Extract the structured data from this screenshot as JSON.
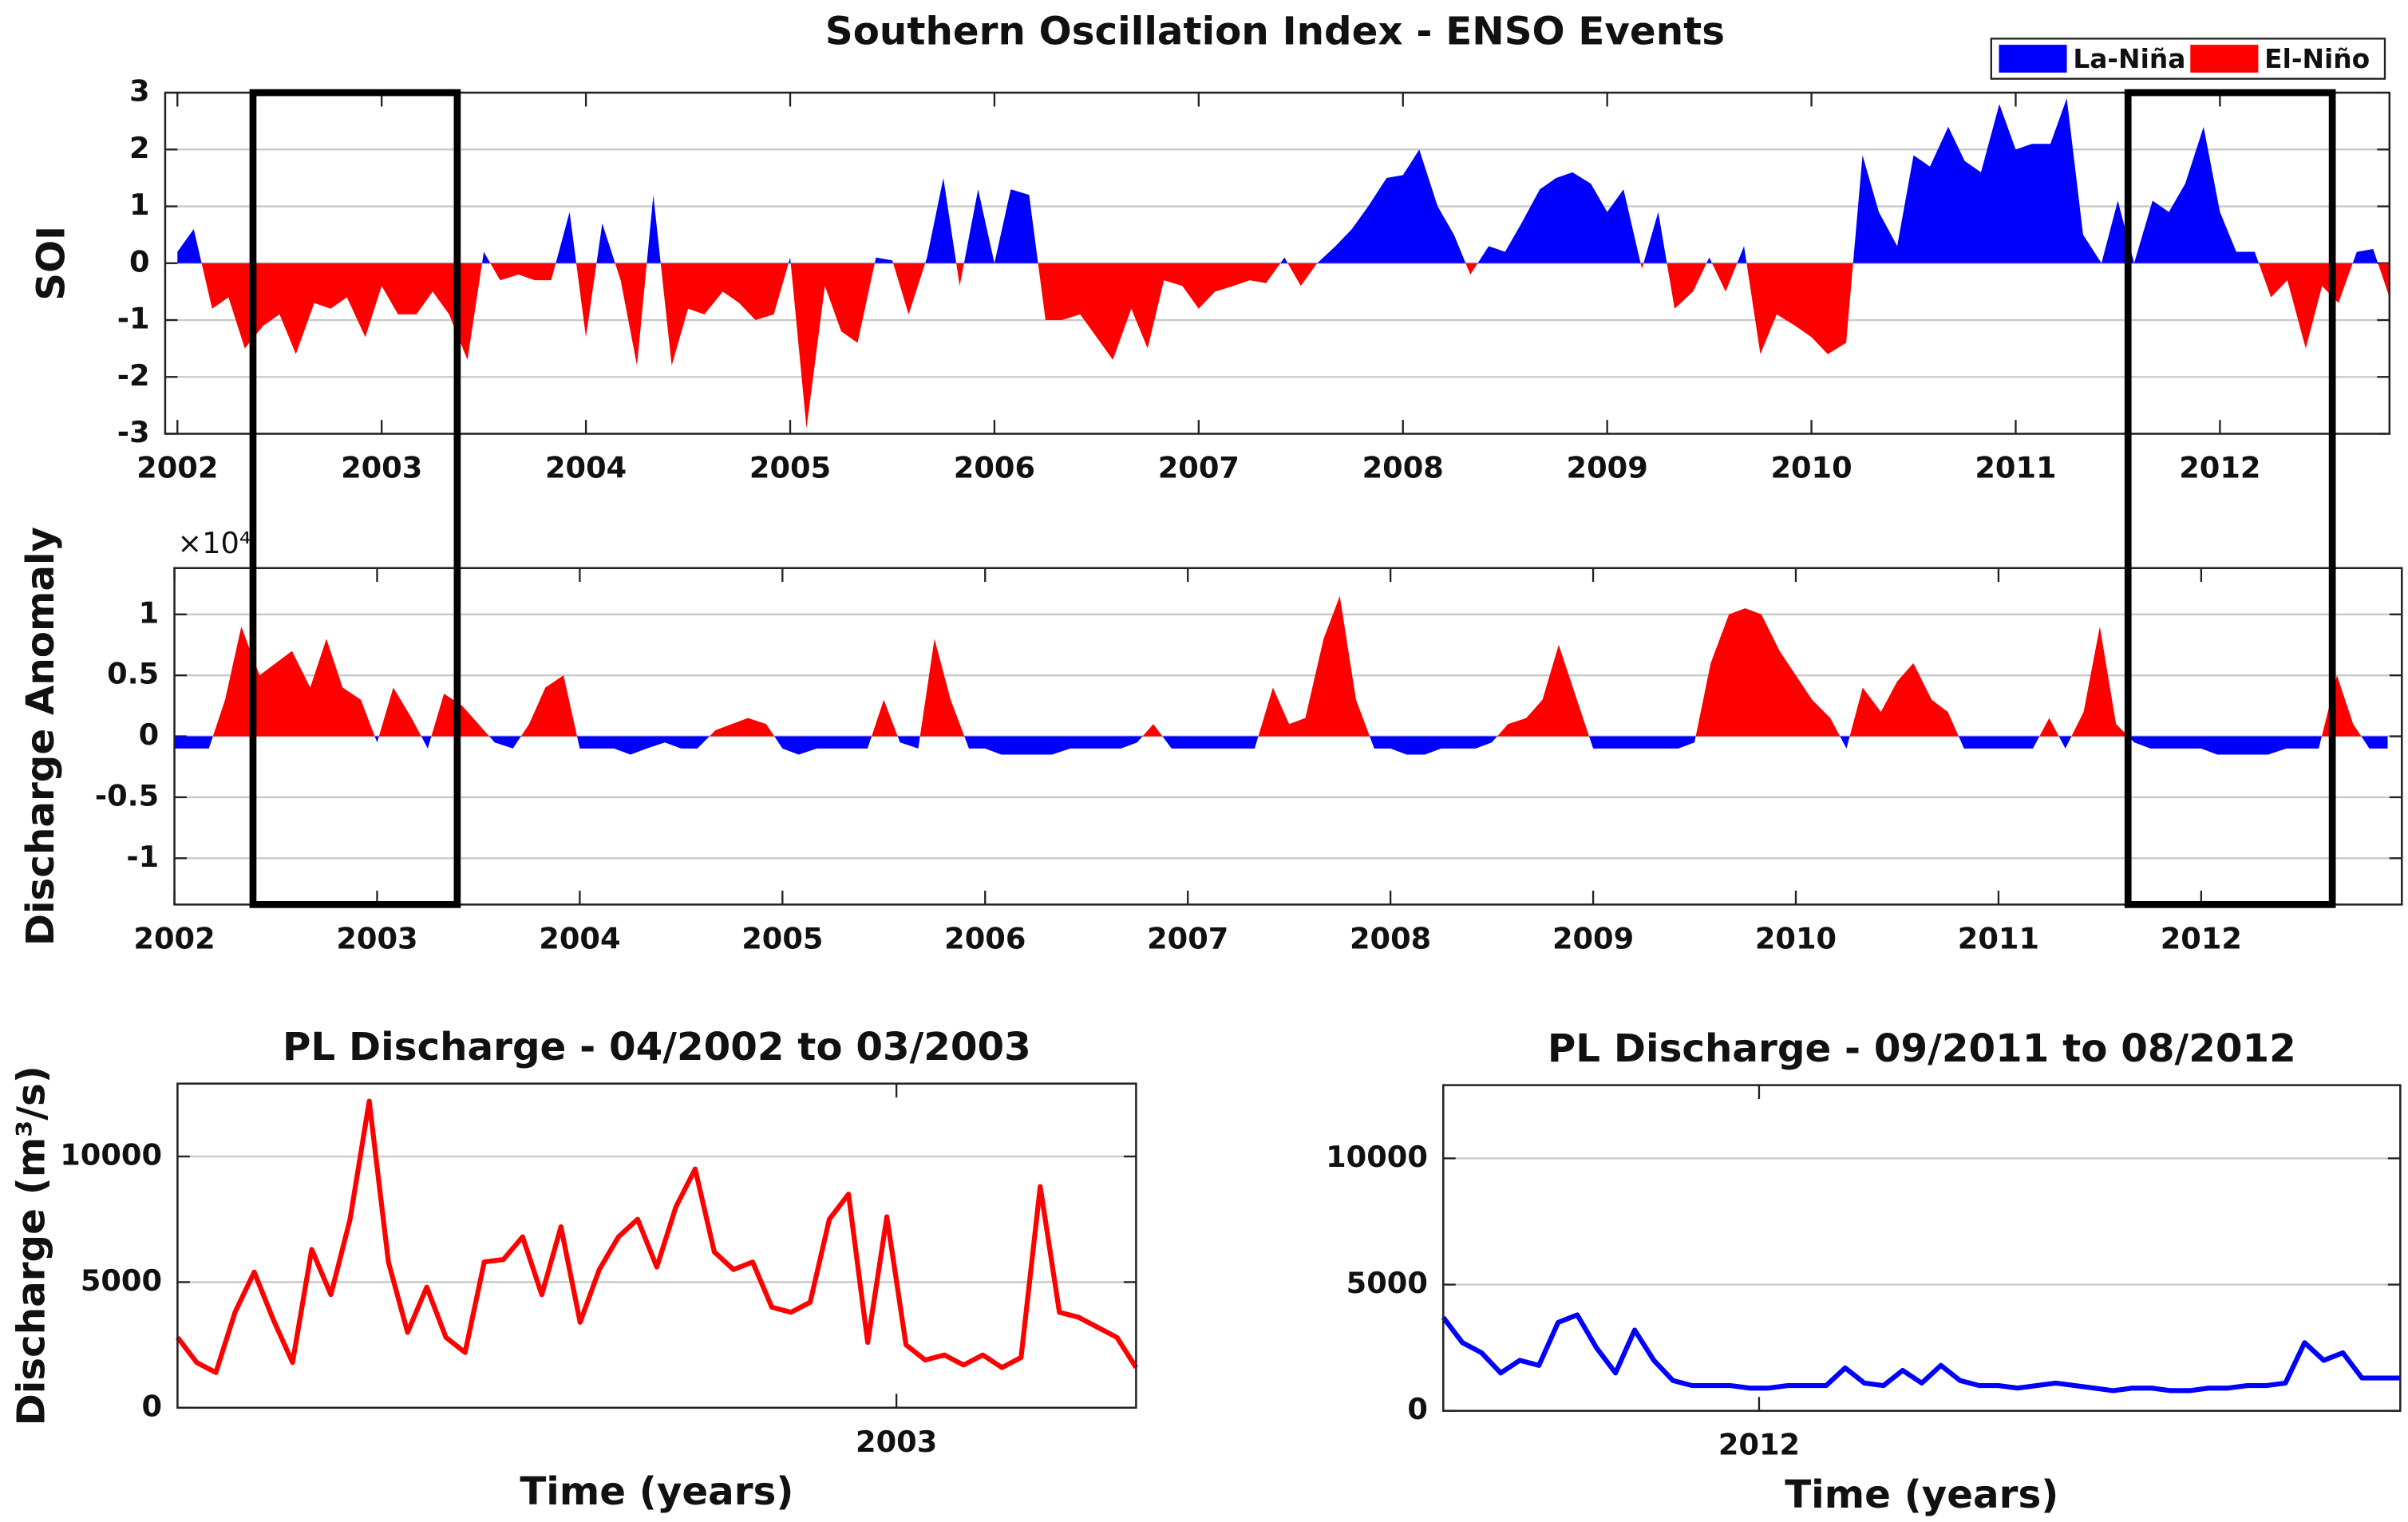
{
  "chart_data": [
    {
      "type": "area",
      "title": "Southern Oscillation Index - ENSO Events",
      "ylabel": "SOI",
      "legend": [
        {
          "name": "La-Niña",
          "color": "#0000ff"
        },
        {
          "name": "El-Niño",
          "color": "#ff0000"
        }
      ],
      "legend_position": "upper right",
      "positive_color": "#0000ff",
      "negative_color": "#ff0000",
      "x": [
        2002.0,
        2002.08,
        2002.17,
        2002.25,
        2002.33,
        2002.42,
        2002.5,
        2002.58,
        2002.67,
        2002.75,
        2002.83,
        2002.92,
        2003.0,
        2003.08,
        2003.17,
        2003.25,
        2003.33,
        2003.42,
        2003.5,
        2003.58,
        2003.67,
        2003.75,
        2003.83,
        2003.92,
        2004.0,
        2004.08,
        2004.17,
        2004.25,
        2004.33,
        2004.42,
        2004.5,
        2004.58,
        2004.67,
        2004.75,
        2004.83,
        2004.92,
        2005.0,
        2005.08,
        2005.17,
        2005.25,
        2005.33,
        2005.42,
        2005.5,
        2005.58,
        2005.67,
        2005.75,
        2005.83,
        2005.92,
        2006.0,
        2006.08,
        2006.17,
        2006.25,
        2006.33,
        2006.42,
        2006.5,
        2006.58,
        2006.67,
        2006.75,
        2006.83,
        2006.92,
        2007.0,
        2007.08,
        2007.17,
        2007.25,
        2007.33,
        2007.42,
        2007.5,
        2007.58,
        2007.67,
        2007.75,
        2007.83,
        2007.92,
        2008.0,
        2008.08,
        2008.17,
        2008.25,
        2008.33,
        2008.42,
        2008.5,
        2008.58,
        2008.67,
        2008.75,
        2008.83,
        2008.92,
        2009.0,
        2009.08,
        2009.17,
        2009.25,
        2009.33,
        2009.42,
        2009.5,
        2009.58,
        2009.67,
        2009.75,
        2009.83,
        2009.92,
        2010.0,
        2010.08,
        2010.17,
        2010.25,
        2010.33,
        2010.42,
        2010.5,
        2010.58,
        2010.67,
        2010.75,
        2010.83,
        2010.92,
        2011.0,
        2011.08,
        2011.17,
        2011.25,
        2011.33,
        2011.42,
        2011.5,
        2011.58,
        2011.67,
        2011.75,
        2011.83,
        2011.92,
        2012.0,
        2012.08,
        2012.17,
        2012.25,
        2012.33,
        2012.42,
        2012.5,
        2012.58,
        2012.67,
        2012.75,
        2012.83
      ],
      "values": [
        0.2,
        0.6,
        -0.8,
        -0.6,
        -1.5,
        -1.1,
        -0.9,
        -1.6,
        -0.7,
        -0.8,
        -0.6,
        -1.3,
        -0.4,
        -0.9,
        -0.9,
        -0.5,
        -0.9,
        -1.7,
        0.2,
        -0.3,
        -0.2,
        -0.3,
        -0.3,
        0.9,
        -1.3,
        0.7,
        -0.3,
        -1.8,
        1.2,
        -1.8,
        -0.8,
        -0.9,
        -0.5,
        -0.7,
        -1.0,
        -0.9,
        0.1,
        -2.9,
        -0.4,
        -1.2,
        -1.4,
        0.1,
        0.05,
        -0.9,
        0.1,
        1.5,
        -0.4,
        1.3,
        0.0,
        1.3,
        1.2,
        -1.0,
        -1.0,
        -0.9,
        -1.3,
        -1.7,
        -0.8,
        -1.5,
        -0.3,
        -0.4,
        -0.8,
        -0.5,
        -0.4,
        -0.3,
        -0.35,
        0.1,
        -0.4,
        0.0,
        0.3,
        0.6,
        1.0,
        1.5,
        1.55,
        2.0,
        1.0,
        0.5,
        -0.2,
        0.3,
        0.2,
        0.7,
        1.3,
        1.5,
        1.6,
        1.4,
        0.9,
        1.3,
        -0.1,
        0.9,
        -0.8,
        -0.5,
        0.1,
        -0.5,
        0.3,
        -1.6,
        -0.9,
        -1.1,
        -1.3,
        -1.6,
        -1.4,
        1.9,
        0.9,
        0.3,
        1.9,
        1.7,
        2.4,
        1.8,
        1.6,
        2.8,
        2.0,
        2.1,
        2.1,
        2.9,
        0.5,
        0.0,
        1.1,
        0.0,
        1.1,
        0.9,
        1.4,
        2.4,
        0.9,
        0.2,
        0.2,
        -0.6,
        -0.3,
        -1.5,
        -0.4,
        -0.7,
        0.2,
        0.25,
        -0.6
      ],
      "xlim": [
        2001.94,
        2012.83
      ],
      "ylim": [
        -3,
        3
      ],
      "xticks": [
        2002,
        2003,
        2004,
        2005,
        2006,
        2007,
        2008,
        2009,
        2010,
        2011,
        2012
      ],
      "yticks": [
        -3,
        -2,
        -1,
        0,
        1,
        2,
        3
      ],
      "grid": true,
      "highlight_ranges": [
        [
          2002.37,
          2003.37
        ],
        [
          2011.55,
          2012.55
        ]
      ]
    },
    {
      "type": "area",
      "ylabel": "Discharge Anomaly",
      "y_multiplier": "×10⁴",
      "positive_color": "#ff0000",
      "negative_color": "#0000ff",
      "x": [
        2002.0,
        2002.08,
        2002.17,
        2002.25,
        2002.33,
        2002.42,
        2002.5,
        2002.58,
        2002.67,
        2002.75,
        2002.83,
        2002.92,
        2003.0,
        2003.08,
        2003.17,
        2003.25,
        2003.33,
        2003.42,
        2003.5,
        2003.58,
        2003.67,
        2003.75,
        2003.83,
        2003.92,
        2004.0,
        2004.08,
        2004.17,
        2004.25,
        2004.33,
        2004.42,
        2004.5,
        2004.58,
        2004.67,
        2004.75,
        2004.83,
        2004.92,
        2005.0,
        2005.08,
        2005.17,
        2005.25,
        2005.33,
        2005.42,
        2005.5,
        2005.58,
        2005.67,
        2005.75,
        2005.83,
        2005.92,
        2006.0,
        2006.08,
        2006.17,
        2006.25,
        2006.33,
        2006.42,
        2006.5,
        2006.58,
        2006.67,
        2006.75,
        2006.83,
        2006.92,
        2007.0,
        2007.08,
        2007.17,
        2007.25,
        2007.33,
        2007.42,
        2007.5,
        2007.58,
        2007.67,
        2007.75,
        2007.83,
        2007.92,
        2008.0,
        2008.08,
        2008.17,
        2008.25,
        2008.33,
        2008.42,
        2008.5,
        2008.58,
        2008.67,
        2008.75,
        2008.83,
        2008.92,
        2009.0,
        2009.08,
        2009.17,
        2009.25,
        2009.33,
        2009.42,
        2009.5,
        2009.58,
        2009.67,
        2009.75,
        2009.83,
        2009.92,
        2010.0,
        2010.08,
        2010.17,
        2010.25,
        2010.33,
        2010.42,
        2010.5,
        2010.58,
        2010.67,
        2010.75,
        2010.83,
        2010.92,
        2011.0,
        2011.08,
        2011.17,
        2011.25,
        2011.33,
        2011.42,
        2011.5,
        2011.58,
        2011.67,
        2011.75,
        2011.83,
        2011.92,
        2012.0,
        2012.08,
        2012.17,
        2012.25,
        2012.33,
        2012.42,
        2012.5,
        2012.58,
        2012.67,
        2012.75,
        2012.83,
        2012.92
      ],
      "values": [
        -0.1,
        -0.1,
        -0.1,
        0.3,
        0.9,
        0.5,
        0.6,
        0.7,
        0.4,
        0.8,
        0.4,
        0.3,
        -0.05,
        0.4,
        0.15,
        -0.1,
        0.35,
        0.25,
        0.1,
        -0.05,
        -0.1,
        0.1,
        0.4,
        0.5,
        -0.1,
        -0.1,
        -0.1,
        -0.15,
        -0.1,
        -0.05,
        -0.1,
        -0.1,
        0.05,
        0.1,
        0.15,
        0.1,
        -0.1,
        -0.15,
        -0.1,
        -0.1,
        -0.1,
        -0.1,
        0.3,
        -0.05,
        -0.1,
        0.8,
        0.3,
        -0.1,
        -0.1,
        -0.15,
        -0.15,
        -0.15,
        -0.15,
        -0.1,
        -0.1,
        -0.1,
        -0.1,
        -0.05,
        0.1,
        -0.1,
        -0.1,
        -0.1,
        -0.1,
        -0.1,
        -0.1,
        0.4,
        0.1,
        0.15,
        0.8,
        1.15,
        0.3,
        -0.1,
        -0.1,
        -0.15,
        -0.15,
        -0.1,
        -0.1,
        -0.1,
        -0.05,
        0.1,
        0.15,
        0.3,
        0.75,
        0.3,
        -0.1,
        -0.1,
        -0.1,
        -0.1,
        -0.1,
        -0.1,
        -0.05,
        0.6,
        1.0,
        1.05,
        1.0,
        0.7,
        0.5,
        0.3,
        0.15,
        -0.1,
        0.4,
        0.2,
        0.45,
        0.6,
        0.3,
        0.2,
        -0.1,
        -0.1,
        -0.1,
        -0.1,
        -0.1,
        0.15,
        -0.1,
        0.2,
        0.9,
        0.1,
        -0.05,
        -0.1,
        -0.1,
        -0.1,
        -0.1,
        -0.15,
        -0.15,
        -0.15,
        -0.15,
        -0.1,
        -0.1,
        -0.1,
        0.5,
        0.1,
        -0.1,
        -0.1
      ],
      "xlim": [
        2002,
        2012.99
      ],
      "ylim": [
        -1.38,
        1.38
      ],
      "xticks": [
        2002,
        2003,
        2004,
        2005,
        2006,
        2007,
        2008,
        2009,
        2010,
        2011,
        2012
      ],
      "yticks": [
        -1,
        -0.5,
        0,
        0.5,
        1
      ],
      "grid": true
    },
    {
      "type": "line",
      "title": "PL Discharge - 04/2002 to 03/2003",
      "xlabel": "Time (years)",
      "ylabel": "Discharge (m³/s)",
      "x": [
        2002.25,
        2002.27,
        2002.29,
        2002.31,
        2002.33,
        2002.35,
        2002.37,
        2002.39,
        2002.41,
        2002.43,
        2002.45,
        2002.47,
        2002.49,
        2002.51,
        2002.53,
        2002.55,
        2002.57,
        2002.59,
        2002.61,
        2002.63,
        2002.65,
        2002.67,
        2002.69,
        2002.71,
        2002.73,
        2002.75,
        2002.77,
        2002.79,
        2002.81,
        2002.83,
        2002.85,
        2002.87,
        2002.89,
        2002.91,
        2002.93,
        2002.95,
        2002.97,
        2002.99,
        2003.01,
        2003.03,
        2003.05,
        2003.07,
        2003.09,
        2003.11,
        2003.13,
        2003.15,
        2003.17,
        2003.19,
        2003.21,
        2003.23,
        2003.25
      ],
      "series": [
        {
          "color": "#ff0000",
          "values": [
            2800,
            1800,
            1400,
            3800,
            5400,
            3500,
            1800,
            6300,
            4500,
            7500,
            12200,
            5800,
            3000,
            4800,
            2800,
            2200,
            5800,
            5900,
            6800,
            4500,
            7200,
            3400,
            5500,
            6800,
            7500,
            5600,
            8000,
            9500,
            6200,
            5500,
            5800,
            4000,
            3800,
            4200,
            7500,
            8500,
            2600,
            7600,
            2500,
            1900,
            2100,
            1700,
            2100,
            1600,
            2000,
            8800,
            3800,
            3600,
            3200,
            2800,
            1600
          ]
        }
      ],
      "xlim": [
        2002.25,
        2003.25
      ],
      "ylim": [
        0,
        12900
      ],
      "xticks": [
        2003
      ],
      "yticks": [
        0,
        5000,
        10000
      ],
      "grid": true
    },
    {
      "type": "line",
      "title": "PL Discharge - 09/2011 to 08/2012",
      "xlabel": "Time (years)",
      "x": [
        2011.67,
        2011.69,
        2011.71,
        2011.73,
        2011.75,
        2011.77,
        2011.79,
        2011.81,
        2011.83,
        2011.85,
        2011.87,
        2011.89,
        2011.91,
        2011.93,
        2011.95,
        2011.97,
        2011.99,
        2012.01,
        2012.03,
        2012.05,
        2012.07,
        2012.09,
        2012.11,
        2012.13,
        2012.15,
        2012.17,
        2012.19,
        2012.21,
        2012.23,
        2012.25,
        2012.27,
        2012.29,
        2012.31,
        2012.33,
        2012.35,
        2012.37,
        2012.39,
        2012.41,
        2012.43,
        2012.45,
        2012.47,
        2012.49,
        2012.51,
        2012.53,
        2012.55,
        2012.57,
        2012.59,
        2012.61,
        2012.63,
        2012.65,
        2012.67
      ],
      "series": [
        {
          "color": "#0000ff",
          "values": [
            3700,
            2700,
            2300,
            1500,
            2000,
            1800,
            3500,
            3800,
            2500,
            1500,
            3200,
            2000,
            1200,
            1000,
            1000,
            1000,
            900,
            900,
            1000,
            1000,
            1000,
            1700,
            1100,
            1000,
            1600,
            1100,
            1800,
            1200,
            1000,
            1000,
            900,
            1000,
            1100,
            1000,
            900,
            800,
            900,
            900,
            800,
            800,
            900,
            900,
            1000,
            1000,
            1100,
            2700,
            2000,
            2300,
            1300,
            1300,
            1300
          ]
        }
      ],
      "xlim": [
        2011.67,
        2012.67
      ],
      "ylim": [
        0,
        12900
      ],
      "xticks": [
        2012
      ],
      "yticks": [
        0,
        5000,
        10000
      ],
      "grid": true
    }
  ]
}
